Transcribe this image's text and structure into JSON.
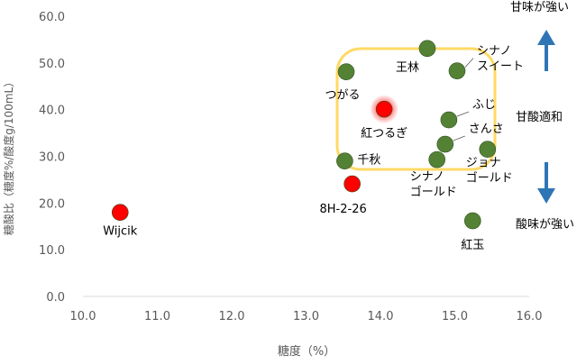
{
  "chart_data": {
    "type": "scatter",
    "xlabel": "糖度（%）",
    "ylabel": "糖酸比（糖度%/酸度g/100mL）",
    "xlim": [
      10,
      16
    ],
    "ylim": [
      0,
      60
    ],
    "xticks": [
      "10.0",
      "11.0",
      "12.0",
      "13.0",
      "14.0",
      "15.0",
      "16.0"
    ],
    "yticks": [
      "0.0",
      "10.0",
      "20.0",
      "30.0",
      "40.0",
      "50.0",
      "60.0"
    ],
    "grid": false,
    "colors": {
      "variety": "#548235",
      "highlight": "#ff0000",
      "region": "#ffd966",
      "arrow": "#2e75b6"
    },
    "points": [
      {
        "label": "Wijcik",
        "x": 10.5,
        "y": 18.0,
        "color": "red"
      },
      {
        "label": "8H-2-26",
        "x": 13.62,
        "y": 24.1,
        "color": "red"
      },
      {
        "label": "紅つるぎ",
        "x": 14.05,
        "y": 40.1,
        "color": "red",
        "glow": true
      },
      {
        "label": "つがる",
        "x": 13.54,
        "y": 48.1,
        "color": "green"
      },
      {
        "label": "王林",
        "x": 14.63,
        "y": 53.1,
        "color": "green"
      },
      {
        "label": "シナノ\nスイート",
        "x": 15.03,
        "y": 48.3,
        "color": "green"
      },
      {
        "label": "ふじ",
        "x": 14.92,
        "y": 37.8,
        "color": "green"
      },
      {
        "label": "さんさ",
        "x": 14.87,
        "y": 32.6,
        "color": "green"
      },
      {
        "label": "シナノ\nゴールド",
        "x": 14.76,
        "y": 29.3,
        "color": "green"
      },
      {
        "label": "ジョナ\nゴールド",
        "x": 15.44,
        "y": 31.5,
        "color": "green"
      },
      {
        "label": "千秋",
        "x": 13.52,
        "y": 29.0,
        "color": "green"
      },
      {
        "label": "紅玉",
        "x": 15.24,
        "y": 16.2,
        "color": "green"
      }
    ],
    "annotations": {
      "sweet": "甘味が強い",
      "balanced": "甘酸適和",
      "sour": "酸味が強い"
    }
  }
}
